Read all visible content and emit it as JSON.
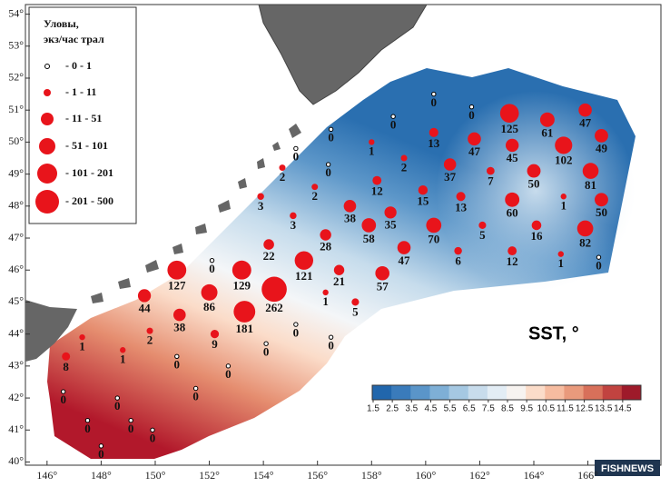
{
  "map": {
    "legend": {
      "title_lines": [
        "Уловы,",
        "экз/час трал"
      ],
      "entries": [
        "- 0 - 1",
        "- 1 - 11",
        "- 11 - 51",
        "- 51 - 101",
        "- 101 - 201",
        "- 201 - 500"
      ]
    },
    "lon_lim": [
      145.2,
      168.7
    ],
    "lat_lim": [
      39.9,
      54.3
    ],
    "lon_ticks": [
      {
        "value": 146,
        "label": "146°"
      },
      {
        "value": 148,
        "label": "148°"
      },
      {
        "value": 150,
        "label": "150°"
      },
      {
        "value": 152,
        "label": "152°"
      },
      {
        "value": 154,
        "label": "154°"
      },
      {
        "value": 156,
        "label": "156°"
      },
      {
        "value": 158,
        "label": "158°"
      },
      {
        "value": 160,
        "label": "160°"
      },
      {
        "value": 162,
        "label": "162°"
      },
      {
        "value": 164,
        "label": "164°"
      },
      {
        "value": 166,
        "label": "166°"
      }
    ],
    "lat_ticks": [
      {
        "value": 40,
        "label": "40°"
      },
      {
        "value": 41,
        "label": "41°"
      },
      {
        "value": 42,
        "label": "42°"
      },
      {
        "value": 43,
        "label": "43°"
      },
      {
        "value": 44,
        "label": "44°"
      },
      {
        "value": 45,
        "label": "45°"
      },
      {
        "value": 46,
        "label": "46°"
      },
      {
        "value": 47,
        "label": "47°"
      },
      {
        "value": 48,
        "label": "48°"
      },
      {
        "value": 49,
        "label": "49°"
      },
      {
        "value": 50,
        "label": "50°"
      },
      {
        "value": 51,
        "label": "51°"
      },
      {
        "value": 52,
        "label": "52°"
      },
      {
        "value": 53,
        "label": "53°"
      },
      {
        "value": 54,
        "label": "54°"
      }
    ],
    "point_color": "#e8141b",
    "points": [
      {
        "lon": 163.1,
        "lat": 50.9,
        "catch": 125
      },
      {
        "lon": 164.5,
        "lat": 50.7,
        "catch": 61
      },
      {
        "lon": 165.9,
        "lat": 51.0,
        "catch": 47
      },
      {
        "lon": 163.2,
        "lat": 49.9,
        "catch": 45
      },
      {
        "lon": 165.1,
        "lat": 49.9,
        "catch": 102
      },
      {
        "lon": 166.5,
        "lat": 50.2,
        "catch": 49
      },
      {
        "lon": 164.0,
        "lat": 49.1,
        "catch": 50
      },
      {
        "lon": 166.1,
        "lat": 49.1,
        "catch": 81
      },
      {
        "lon": 162.4,
        "lat": 49.1,
        "catch": 7
      },
      {
        "lon": 165.1,
        "lat": 48.3,
        "catch": 1
      },
      {
        "lon": 166.5,
        "lat": 48.2,
        "catch": 50
      },
      {
        "lon": 163.2,
        "lat": 48.2,
        "catch": 60
      },
      {
        "lon": 164.1,
        "lat": 47.4,
        "catch": 16
      },
      {
        "lon": 165.9,
        "lat": 47.3,
        "catch": 82
      },
      {
        "lon": 166.4,
        "lat": 46.4,
        "catch": 0
      },
      {
        "lon": 163.2,
        "lat": 46.6,
        "catch": 12
      },
      {
        "lon": 165.0,
        "lat": 46.5,
        "catch": 1
      },
      {
        "lon": 162.1,
        "lat": 47.4,
        "catch": 5
      },
      {
        "lon": 161.2,
        "lat": 46.6,
        "catch": 6
      },
      {
        "lon": 160.3,
        "lat": 50.3,
        "catch": 13
      },
      {
        "lon": 161.8,
        "lat": 50.1,
        "catch": 47
      },
      {
        "lon": 160.9,
        "lat": 49.3,
        "catch": 37
      },
      {
        "lon": 159.9,
        "lat": 48.5,
        "catch": 15
      },
      {
        "lon": 161.3,
        "lat": 48.3,
        "catch": 13
      },
      {
        "lon": 160.3,
        "lat": 47.4,
        "catch": 70
      },
      {
        "lon": 159.2,
        "lat": 46.7,
        "catch": 47
      },
      {
        "lon": 158.0,
        "lat": 50.0,
        "catch": 1
      },
      {
        "lon": 159.2,
        "lat": 49.5,
        "catch": 2
      },
      {
        "lon": 158.2,
        "lat": 48.8,
        "catch": 12
      },
      {
        "lon": 157.2,
        "lat": 48.0,
        "catch": 38
      },
      {
        "lon": 158.7,
        "lat": 47.8,
        "catch": 35
      },
      {
        "lon": 157.9,
        "lat": 47.4,
        "catch": 58
      },
      {
        "lon": 158.4,
        "lat": 45.9,
        "catch": 57
      },
      {
        "lon": 156.8,
        "lat": 46.0,
        "catch": 21
      },
      {
        "lon": 155.5,
        "lat": 46.3,
        "catch": 121
      },
      {
        "lon": 156.3,
        "lat": 47.1,
        "catch": 28
      },
      {
        "lon": 154.7,
        "lat": 49.2,
        "catch": 2
      },
      {
        "lon": 155.9,
        "lat": 48.6,
        "catch": 2
      },
      {
        "lon": 153.9,
        "lat": 48.3,
        "catch": 3
      },
      {
        "lon": 155.1,
        "lat": 47.7,
        "catch": 3
      },
      {
        "lon": 154.2,
        "lat": 46.8,
        "catch": 22
      },
      {
        "lon": 153.2,
        "lat": 46.0,
        "catch": 129
      },
      {
        "lon": 154.4,
        "lat": 45.4,
        "catch": 262
      },
      {
        "lon": 153.3,
        "lat": 44.7,
        "catch": 181
      },
      {
        "lon": 152.0,
        "lat": 45.3,
        "catch": 86
      },
      {
        "lon": 150.8,
        "lat": 46.0,
        "catch": 127
      },
      {
        "lon": 149.6,
        "lat": 45.2,
        "catch": 44
      },
      {
        "lon": 150.9,
        "lat": 44.6,
        "catch": 38
      },
      {
        "lon": 152.2,
        "lat": 44.0,
        "catch": 9
      },
      {
        "lon": 149.8,
        "lat": 44.1,
        "catch": 2
      },
      {
        "lon": 148.8,
        "lat": 43.5,
        "catch": 1
      },
      {
        "lon": 156.3,
        "lat": 45.3,
        "catch": 1
      },
      {
        "lon": 157.4,
        "lat": 45.0,
        "catch": 5
      },
      {
        "lon": 147.3,
        "lat": 43.9,
        "catch": 1
      },
      {
        "lon": 146.7,
        "lat": 43.3,
        "catch": 8
      },
      {
        "lon": 160.3,
        "lat": 51.5,
        "catch": 0
      },
      {
        "lon": 161.7,
        "lat": 51.1,
        "catch": 0
      },
      {
        "lon": 158.8,
        "lat": 50.8,
        "catch": 0
      },
      {
        "lon": 156.5,
        "lat": 50.4,
        "catch": 0
      },
      {
        "lon": 155.2,
        "lat": 49.8,
        "catch": 0
      },
      {
        "lon": 156.4,
        "lat": 49.3,
        "catch": 0
      },
      {
        "lon": 152.1,
        "lat": 46.3,
        "catch": 0
      },
      {
        "lon": 156.5,
        "lat": 43.9,
        "catch": 0
      },
      {
        "lon": 155.2,
        "lat": 44.3,
        "catch": 0
      },
      {
        "lon": 154.1,
        "lat": 43.7,
        "catch": 0
      },
      {
        "lon": 152.7,
        "lat": 43.0,
        "catch": 0
      },
      {
        "lon": 150.8,
        "lat": 43.3,
        "catch": 0
      },
      {
        "lon": 151.5,
        "lat": 42.3,
        "catch": 0
      },
      {
        "lon": 149.1,
        "lat": 41.3,
        "catch": 0
      },
      {
        "lon": 148.0,
        "lat": 40.5,
        "catch": 0
      },
      {
        "lon": 146.6,
        "lat": 42.2,
        "catch": 0
      },
      {
        "lon": 147.5,
        "lat": 41.3,
        "catch": 0
      },
      {
        "lon": 149.9,
        "lat": 41.0,
        "catch": 0
      },
      {
        "lon": 148.6,
        "lat": 42.0,
        "catch": 0
      }
    ],
    "sst": {
      "title": "SST, °",
      "ticks": [
        1.5,
        2.5,
        3.5,
        4.5,
        5.5,
        6.5,
        7.5,
        8.5,
        9.5,
        10.5,
        11.5,
        12.5,
        13.5,
        14.5
      ],
      "colors": [
        "#2166ac",
        "#3a7bbb",
        "#5a95c9",
        "#7eafd6",
        "#a5c8e2",
        "#c8dcec",
        "#e3edf5",
        "#f7f3f0",
        "#fbdcc9",
        "#f6bca0",
        "#e99a7c",
        "#d8705a",
        "#c14340",
        "#9e1a2a"
      ]
    },
    "watermark": "FISHNEWS"
  }
}
